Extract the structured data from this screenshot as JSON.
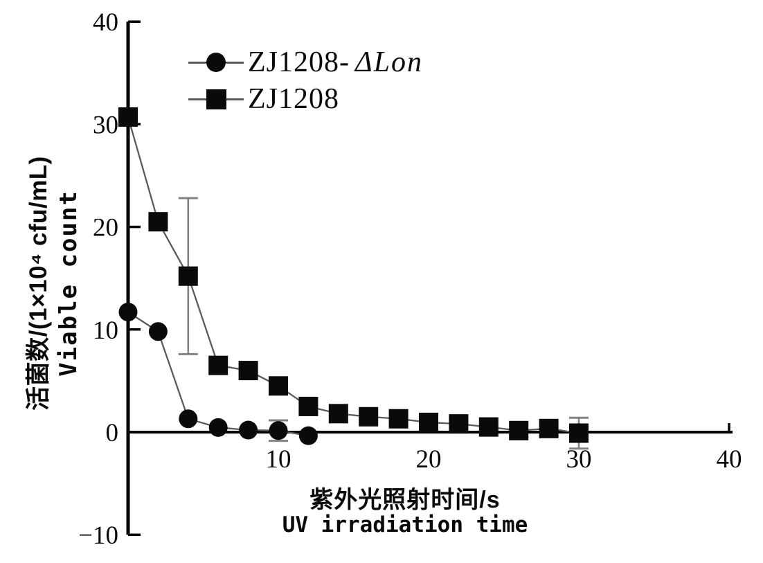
{
  "chart_data": {
    "type": "line",
    "title": "",
    "xlabel_cn": "紫外光照射时间/s",
    "xlabel_en": "UV irradiation time",
    "ylabel_cn": "活菌数/(1×10⁴ cfu/mL)",
    "ylabel_en": "Viable count",
    "xlim": [
      0,
      40
    ],
    "ylim": [
      -10,
      40
    ],
    "grid": false,
    "legend_position": "top-left-inside",
    "xticks": [
      {
        "v": 10,
        "label": "10"
      },
      {
        "v": 20,
        "label": "20"
      },
      {
        "v": 30,
        "label": "30"
      },
      {
        "v": 40,
        "label": "40"
      }
    ],
    "yticks": [
      {
        "v": 40,
        "label": "40"
      },
      {
        "v": 30,
        "label": "30"
      },
      {
        "v": 20,
        "label": "20"
      },
      {
        "v": 10,
        "label": "10"
      },
      {
        "v": 0,
        "label": "0"
      },
      {
        "v": -10,
        "label": "−10"
      }
    ],
    "colors": {
      "marker": "#0a0a0a",
      "line": "#5a5a5a",
      "error": "#828282",
      "axis": "#000000"
    },
    "series": [
      {
        "name": "ZJ1208-ΔLon",
        "label_prefix": "ZJ1208-",
        "label_italic": "ΔLon",
        "marker": "circle",
        "x": [
          0,
          2,
          4,
          6,
          8,
          10,
          12
        ],
        "values": [
          11.7,
          9.8,
          1.3,
          0.45,
          0.2,
          0.15,
          -0.35
        ],
        "errors": [
          0,
          0,
          0,
          0,
          0,
          1.0,
          0
        ]
      },
      {
        "name": "ZJ1208",
        "label_prefix": "ZJ1208",
        "label_italic": "",
        "marker": "square",
        "x": [
          0,
          2,
          4,
          6,
          8,
          10,
          12,
          14,
          16,
          18,
          20,
          22,
          24,
          26,
          28,
          30
        ],
        "values": [
          30.7,
          20.5,
          15.2,
          6.5,
          6.0,
          4.5,
          2.5,
          1.8,
          1.5,
          1.3,
          0.95,
          0.8,
          0.5,
          0.15,
          0.35,
          -0.1
        ],
        "errors": [
          0.5,
          0,
          7.6,
          0,
          0,
          0,
          0,
          0,
          0,
          0,
          0,
          0,
          0,
          0,
          0,
          1.5
        ]
      }
    ]
  }
}
